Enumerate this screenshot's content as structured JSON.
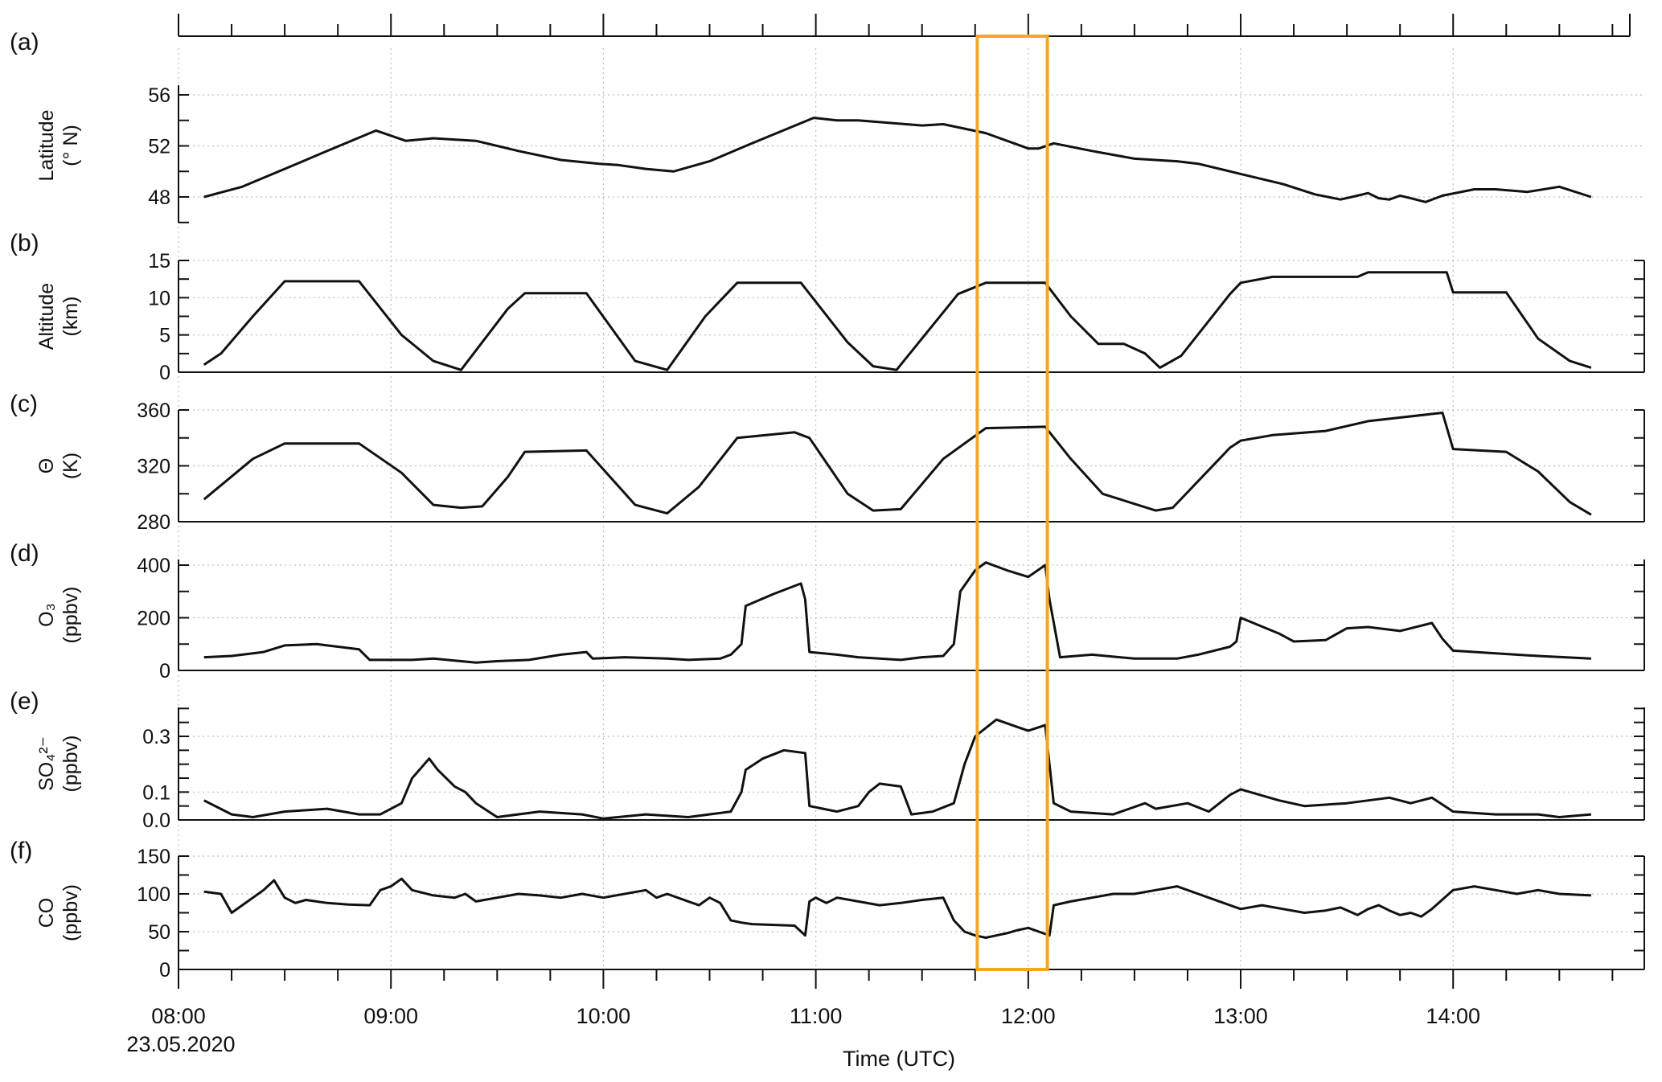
{
  "chart_data": {
    "type": "line",
    "xlabel": "Time (UTC)",
    "date_label": "23.05.2020",
    "x_ticks": [
      "08:00",
      "09:00",
      "10:00",
      "11:00",
      "12:00",
      "13:00",
      "14:00"
    ],
    "x_range_hours": [
      8.0,
      14.92
    ],
    "grid": true,
    "highlight": {
      "x_start_hours": 11.76,
      "x_end_hours": 12.09,
      "color": "#F5A623"
    },
    "panels": [
      {
        "letter": "(a)",
        "ylabel": [
          "Latitude",
          "(° N)"
        ],
        "ylim": [
          46,
          58
        ],
        "yticks": [
          48,
          52,
          56
        ],
        "series": {
          "x": [
            8.12,
            8.3,
            8.5,
            8.7,
            8.93,
            9.07,
            9.2,
            9.4,
            9.6,
            9.8,
            9.98,
            10.07,
            10.2,
            10.33,
            10.5,
            10.7,
            10.99,
            11.1,
            11.2,
            11.5,
            11.6,
            11.8,
            12.0,
            12.05,
            12.12,
            12.3,
            12.5,
            12.7,
            12.8,
            13.0,
            13.2,
            13.35,
            13.47,
            13.55,
            13.6,
            13.65,
            13.7,
            13.75,
            13.8,
            13.87,
            13.95,
            14.1,
            14.2,
            14.35,
            14.5,
            14.65
          ],
          "y": [
            48.0,
            48.8,
            50.2,
            51.6,
            53.2,
            52.4,
            52.6,
            52.4,
            51.6,
            50.9,
            50.6,
            50.5,
            50.2,
            50.0,
            50.8,
            52.2,
            54.2,
            54.0,
            54.0,
            53.6,
            53.7,
            53.0,
            51.8,
            51.8,
            52.2,
            51.6,
            51.0,
            50.8,
            50.6,
            49.8,
            49.0,
            48.2,
            47.8,
            48.1,
            48.3,
            47.9,
            47.8,
            48.1,
            47.9,
            47.6,
            48.1,
            48.6,
            48.6,
            48.4,
            48.8,
            48.0
          ]
        }
      },
      {
        "letter": "(b)",
        "ylabel": [
          "Altitude",
          "(km)"
        ],
        "ylim": [
          0,
          15
        ],
        "yticks": [
          0,
          5,
          10,
          15
        ],
        "series": {
          "x": [
            8.12,
            8.2,
            8.35,
            8.5,
            8.85,
            9.05,
            9.2,
            9.33,
            9.55,
            9.63,
            9.92,
            10.15,
            10.3,
            10.48,
            10.63,
            10.93,
            11.15,
            11.27,
            11.38,
            11.67,
            11.8,
            12.08,
            12.2,
            12.33,
            12.45,
            12.55,
            12.62,
            12.72,
            12.95,
            13.0,
            13.15,
            13.55,
            13.6,
            13.97,
            14.0,
            14.25,
            14.4,
            14.55,
            14.65
          ],
          "y": [
            1.0,
            2.5,
            7.5,
            12.2,
            12.2,
            5.0,
            1.5,
            0.3,
            8.5,
            10.6,
            10.6,
            1.5,
            0.3,
            7.5,
            12.0,
            12.0,
            4.0,
            0.8,
            0.3,
            10.5,
            12.0,
            12.0,
            7.5,
            3.8,
            3.8,
            2.5,
            0.6,
            2.2,
            10.5,
            12.0,
            12.8,
            12.8,
            13.4,
            13.4,
            10.7,
            10.7,
            4.5,
            1.5,
            0.6
          ]
        }
      },
      {
        "letter": "(c)",
        "ylabel": [
          "Θ",
          "(K)"
        ],
        "ylim": [
          280,
          365
        ],
        "yticks": [
          280,
          320,
          360
        ],
        "series": {
          "x": [
            8.12,
            8.35,
            8.5,
            8.85,
            9.05,
            9.2,
            9.33,
            9.43,
            9.55,
            9.63,
            9.92,
            10.15,
            10.3,
            10.45,
            10.63,
            10.9,
            10.97,
            11.15,
            11.27,
            11.4,
            11.6,
            11.8,
            12.08,
            12.2,
            12.35,
            12.6,
            12.68,
            12.95,
            13.0,
            13.15,
            13.4,
            13.6,
            13.95,
            14.0,
            14.25,
            14.4,
            14.55,
            14.65
          ],
          "y": [
            296,
            325,
            336,
            336,
            315,
            292,
            290,
            291,
            312,
            330,
            331,
            292,
            286,
            305,
            340,
            344,
            340,
            300,
            288,
            289,
            325,
            347,
            348,
            325,
            300,
            288,
            290,
            333,
            338,
            342,
            345,
            352,
            358,
            332,
            330,
            316,
            294,
            285
          ]
        }
      },
      {
        "letter": "(d)",
        "ylabel": [
          "O₃",
          "(ppbv)"
        ],
        "ylim": [
          0,
          420
        ],
        "yticks": [
          0,
          200,
          400
        ],
        "series": {
          "x": [
            8.12,
            8.25,
            8.4,
            8.5,
            8.65,
            8.75,
            8.85,
            8.9,
            9.1,
            9.2,
            9.4,
            9.5,
            9.65,
            9.8,
            9.92,
            9.95,
            10.1,
            10.3,
            10.4,
            10.55,
            10.6,
            10.65,
            10.67,
            10.8,
            10.93,
            10.95,
            10.97,
            11.1,
            11.2,
            11.4,
            11.5,
            11.6,
            11.65,
            11.68,
            11.75,
            11.8,
            11.9,
            12.0,
            12.08,
            12.1,
            12.15,
            12.3,
            12.5,
            12.7,
            12.8,
            12.95,
            12.98,
            13.0,
            13.18,
            13.25,
            13.4,
            13.5,
            13.6,
            13.75,
            13.9,
            13.95,
            14.0,
            14.2,
            14.4,
            14.65
          ],
          "y": [
            50,
            55,
            70,
            95,
            100,
            90,
            80,
            40,
            40,
            45,
            30,
            35,
            40,
            60,
            70,
            45,
            50,
            45,
            40,
            45,
            60,
            100,
            245,
            290,
            330,
            270,
            70,
            60,
            50,
            40,
            50,
            55,
            100,
            300,
            380,
            410,
            380,
            355,
            400,
            270,
            50,
            60,
            45,
            45,
            60,
            90,
            110,
            200,
            140,
            110,
            115,
            160,
            165,
            150,
            180,
            120,
            75,
            65,
            55,
            45
          ]
        }
      },
      {
        "letter": "(e)",
        "ylabel": [
          "SO₄²⁻",
          "(ppbv)"
        ],
        "ylim": [
          0,
          0.42
        ],
        "yticks": [
          0.0,
          0.1,
          0.3
        ],
        "ytick_labels": [
          "0.0",
          "0.1",
          "0.3"
        ],
        "series": {
          "x": [
            8.12,
            8.25,
            8.35,
            8.5,
            8.7,
            8.85,
            8.95,
            9.05,
            9.1,
            9.18,
            9.22,
            9.3,
            9.35,
            9.4,
            9.5,
            9.7,
            9.9,
            10.0,
            10.2,
            10.4,
            10.6,
            10.65,
            10.67,
            10.75,
            10.85,
            10.95,
            10.97,
            11.1,
            11.2,
            11.25,
            11.3,
            11.4,
            11.45,
            11.55,
            11.65,
            11.7,
            11.75,
            11.85,
            12.0,
            12.08,
            12.12,
            12.2,
            12.4,
            12.55,
            12.6,
            12.75,
            12.85,
            12.95,
            13.0,
            13.18,
            13.3,
            13.5,
            13.7,
            13.8,
            13.9,
            14.0,
            14.2,
            14.4,
            14.5,
            14.65
          ],
          "y": [
            0.07,
            0.02,
            0.01,
            0.03,
            0.04,
            0.02,
            0.02,
            0.06,
            0.15,
            0.22,
            0.18,
            0.12,
            0.1,
            0.06,
            0.01,
            0.03,
            0.02,
            0.005,
            0.02,
            0.01,
            0.03,
            0.1,
            0.18,
            0.22,
            0.25,
            0.24,
            0.05,
            0.03,
            0.05,
            0.1,
            0.13,
            0.12,
            0.02,
            0.03,
            0.06,
            0.2,
            0.3,
            0.36,
            0.32,
            0.34,
            0.06,
            0.03,
            0.02,
            0.06,
            0.04,
            0.06,
            0.03,
            0.09,
            0.11,
            0.07,
            0.05,
            0.06,
            0.08,
            0.06,
            0.08,
            0.03,
            0.02,
            0.02,
            0.01,
            0.02
          ]
        }
      },
      {
        "letter": "(f)",
        "ylabel": [
          "CO",
          "(ppbv)"
        ],
        "ylim": [
          0,
          150
        ],
        "yticks": [
          0,
          50,
          100,
          150
        ],
        "series": {
          "x": [
            8.12,
            8.2,
            8.25,
            8.3,
            8.4,
            8.45,
            8.5,
            8.55,
            8.6,
            8.7,
            8.8,
            8.9,
            8.95,
            9.0,
            9.05,
            9.1,
            9.2,
            9.3,
            9.35,
            9.4,
            9.5,
            9.6,
            9.7,
            9.8,
            9.9,
            10.0,
            10.2,
            10.25,
            10.3,
            10.4,
            10.45,
            10.5,
            10.55,
            10.6,
            10.65,
            10.7,
            10.9,
            10.95,
            10.97,
            11.0,
            11.05,
            11.1,
            11.2,
            11.3,
            11.4,
            11.5,
            11.6,
            11.65,
            11.7,
            11.75,
            11.8,
            11.85,
            11.9,
            11.95,
            12.0,
            12.05,
            12.1,
            12.12,
            12.2,
            12.3,
            12.4,
            12.5,
            12.6,
            12.7,
            12.8,
            12.9,
            13.0,
            13.1,
            13.2,
            13.3,
            13.4,
            13.47,
            13.55,
            13.6,
            13.65,
            13.7,
            13.75,
            13.8,
            13.85,
            13.9,
            14.0,
            14.1,
            14.2,
            14.3,
            14.4,
            14.5,
            14.65
          ],
          "y": [
            103,
            100,
            75,
            85,
            105,
            118,
            95,
            88,
            92,
            88,
            86,
            85,
            105,
            110,
            120,
            105,
            98,
            95,
            100,
            90,
            95,
            100,
            98,
            95,
            100,
            95,
            105,
            95,
            100,
            90,
            85,
            95,
            88,
            65,
            62,
            60,
            58,
            45,
            90,
            95,
            88,
            95,
            90,
            85,
            88,
            92,
            95,
            65,
            50,
            45,
            42,
            45,
            48,
            52,
            55,
            50,
            45,
            85,
            90,
            95,
            100,
            100,
            105,
            110,
            100,
            90,
            80,
            85,
            80,
            75,
            78,
            82,
            72,
            80,
            85,
            78,
            72,
            75,
            70,
            80,
            105,
            110,
            105,
            100,
            105,
            100,
            98
          ]
        }
      }
    ]
  }
}
